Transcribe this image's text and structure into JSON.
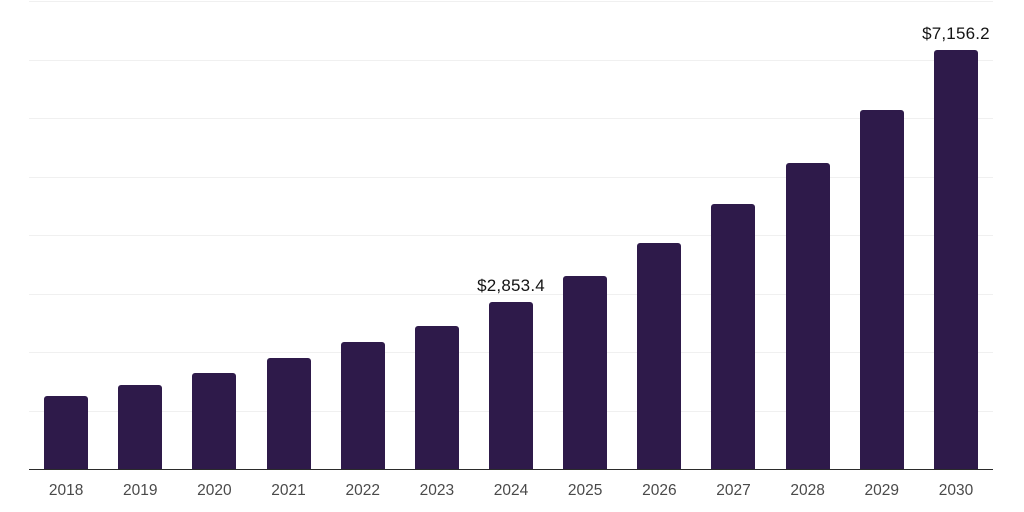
{
  "chart_data": {
    "type": "bar",
    "title": "",
    "xlabel": "",
    "ylabel": "",
    "categories": [
      "2018",
      "2019",
      "2020",
      "2021",
      "2022",
      "2023",
      "2024",
      "2025",
      "2026",
      "2027",
      "2028",
      "2029",
      "2030"
    ],
    "values": [
      1240,
      1428,
      1633,
      1890,
      2163,
      2445,
      2853.4,
      3301,
      3865,
      4523,
      5233,
      6139,
      7156.2
    ],
    "labeled_points": [
      {
        "category": "2024",
        "label": "$2,853.4"
      },
      {
        "category": "2030",
        "label": "$7,156.2"
      }
    ],
    "ylim": [
      0,
      8000
    ],
    "gridline_interval": 1000,
    "grid": "horizontal",
    "legend": "none",
    "colors": {
      "bar": "#2e1a4a",
      "gridline": "#f0f0f0",
      "axis_line": "#2b2b2b",
      "tick_label": "#4a4a4a",
      "data_label": "#141414",
      "background": "#ffffff"
    }
  }
}
